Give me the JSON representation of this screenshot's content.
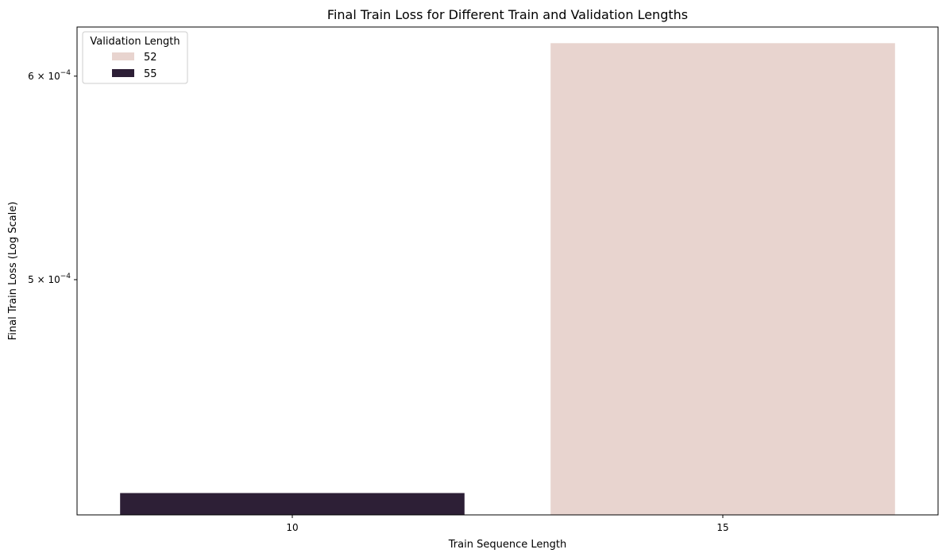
{
  "chart_data": {
    "type": "bar",
    "title": "Final Train Loss for Different Train and Validation Lengths",
    "xlabel": "Train Sequence Length",
    "ylabel": "Final Train Loss (Log Scale)",
    "yscale": "log",
    "ylim": [
      0.000405,
      0.000627
    ],
    "categories": [
      "10",
      "15"
    ],
    "yticks": [
      {
        "value": 0.0005,
        "mantissa": "5",
        "exponent": "−4"
      },
      {
        "value": 0.0006,
        "mantissa": "6",
        "exponent": "−4"
      }
    ],
    "tick_base": "10",
    "tick_times": "×",
    "legend": {
      "title": "Validation Length",
      "placement": "top-left"
    },
    "series": [
      {
        "name": "52",
        "color": "#e8d4cf",
        "values": [
          null,
          0.000618
        ]
      },
      {
        "name": "55",
        "color": "#2d1f36",
        "values": [
          0.000413,
          null
        ]
      }
    ],
    "grid": false
  }
}
